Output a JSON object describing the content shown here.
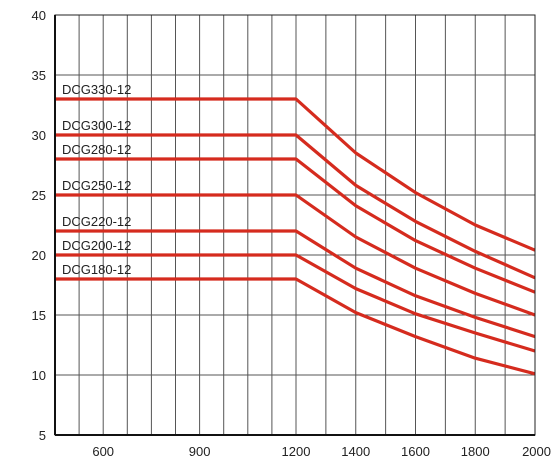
{
  "chart_data": {
    "type": "line",
    "title": "",
    "xlabel": "",
    "ylabel": "",
    "xlim": [
      450,
      2000
    ],
    "ylim": [
      5,
      40
    ],
    "x_ticks": [
      600,
      900,
      1200,
      1400,
      1600,
      1800,
      2000
    ],
    "y_ticks": [
      5,
      10,
      15,
      20,
      25,
      30,
      35,
      40
    ],
    "grid": true,
    "x_grid": [
      450,
      525,
      600,
      675,
      750,
      825,
      900,
      975,
      1050,
      1125,
      1200,
      1300,
      1400,
      1500,
      1600,
      1700,
      1800,
      1900,
      2000
    ],
    "series_color": "#d52b1e",
    "series": [
      {
        "name": "DCG330-12",
        "x": [
          450,
          1200,
          1400,
          1600,
          1800,
          2000
        ],
        "values": [
          33,
          33,
          28.5,
          25.2,
          22.5,
          20.4
        ]
      },
      {
        "name": "DCG300-12",
        "x": [
          450,
          1200,
          1400,
          1600,
          1800,
          2000
        ],
        "values": [
          30,
          30,
          25.8,
          22.8,
          20.3,
          18.1
        ]
      },
      {
        "name": "DCG280-12",
        "x": [
          450,
          1200,
          1400,
          1600,
          1800,
          2000
        ],
        "values": [
          28,
          28,
          24.1,
          21.2,
          18.9,
          16.9
        ]
      },
      {
        "name": "DCG250-12",
        "x": [
          450,
          1200,
          1400,
          1600,
          1800,
          2000
        ],
        "values": [
          25,
          25,
          21.5,
          18.9,
          16.8,
          15.0
        ]
      },
      {
        "name": "DCG220-12",
        "x": [
          450,
          1200,
          1400,
          1600,
          1800,
          2000
        ],
        "values": [
          22,
          22,
          18.9,
          16.6,
          14.8,
          13.2
        ]
      },
      {
        "name": "DCG200-12",
        "x": [
          450,
          1200,
          1400,
          1600,
          1800,
          2000
        ],
        "values": [
          20,
          20,
          17.2,
          15.1,
          13.5,
          12.0
        ]
      },
      {
        "name": "DCG180-12",
        "x": [
          450,
          1200,
          1400,
          1600,
          1800,
          2000
        ],
        "values": [
          18,
          18,
          15.2,
          13.2,
          11.4,
          10.1
        ]
      }
    ]
  }
}
